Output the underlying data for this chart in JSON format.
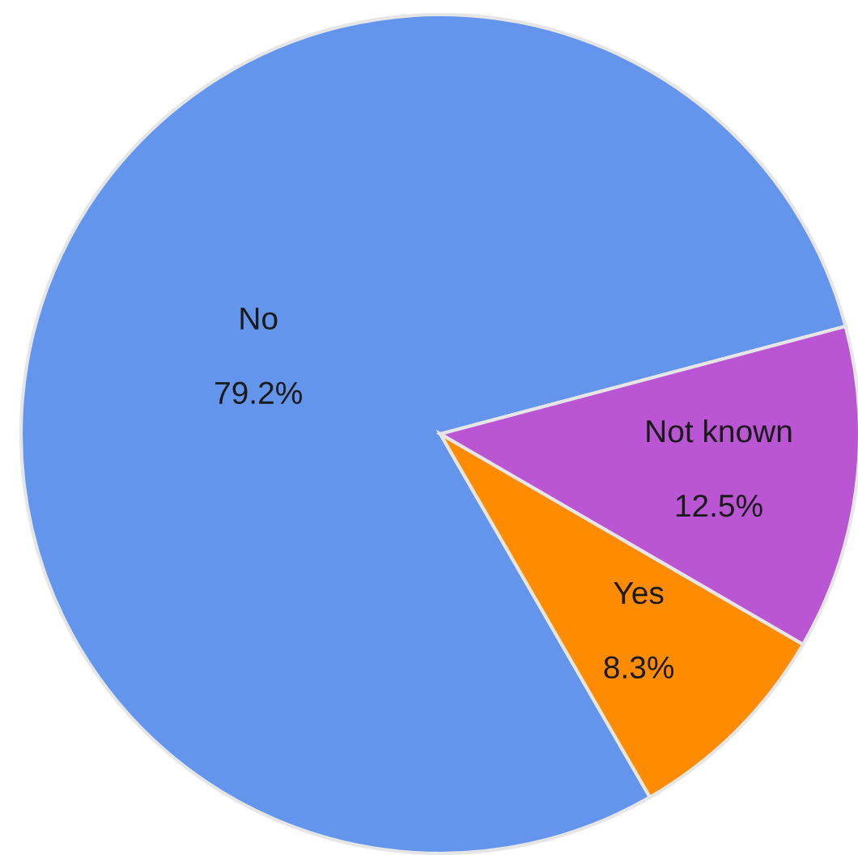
{
  "chart_data": {
    "type": "pie",
    "categories": [
      "No",
      "Not known",
      "Yes"
    ],
    "values": [
      79.2,
      12.5,
      8.3
    ],
    "colors": [
      "#6495ed",
      "#ba55d3",
      "#ff8c00"
    ],
    "value_labels": [
      "79.2%",
      "12.5%",
      "8.3%"
    ]
  }
}
